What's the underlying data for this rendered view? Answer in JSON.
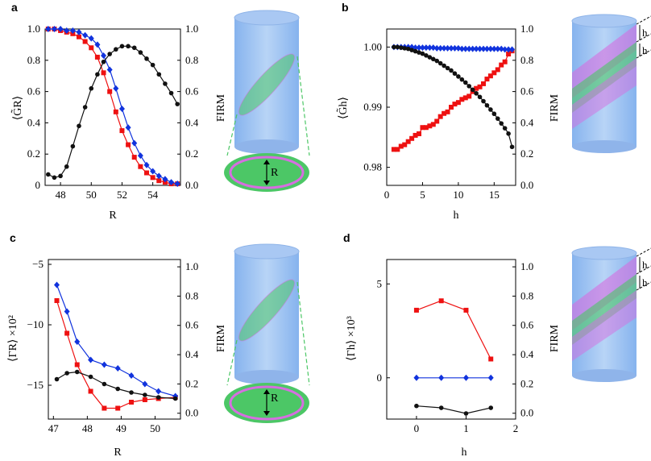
{
  "colors": {
    "red": "#ee1111",
    "blue": "#1133dd",
    "black": "#111111",
    "cyl": "#9ec3f0",
    "green": "#4cc766",
    "pink": "#d66ee0"
  },
  "panels": [
    {
      "label": "a",
      "xlabel": "R",
      "ylabel": "⟨G̃R⟩",
      "y2label": "FIRM",
      "ring_label": "R"
    },
    {
      "label": "b",
      "xlabel": "h",
      "ylabel": "⟨G̃h⟩",
      "y2label": "FIRM",
      "h_marks": [
        "h",
        "h"
      ]
    },
    {
      "label": "c",
      "xlabel": "R",
      "ylabel": "⟨ΓR⟩ ×10²",
      "y2label": "FIRM",
      "ring_label": "R"
    },
    {
      "label": "d",
      "xlabel": "h",
      "ylabel": "⟨Γh⟩ ×10³",
      "y2label": "FIRM",
      "h_marks": [
        "h",
        "h"
      ]
    }
  ],
  "chart_data": [
    {
      "type": "line",
      "panel": "a",
      "xlabel": "R",
      "ylabel": "⟨G̃R⟩",
      "y2label": "FIRM",
      "xlim": [
        47,
        55.8
      ],
      "ylim": [
        0,
        1.0
      ],
      "y2lim": [
        0,
        1.0
      ],
      "xticks": [
        48,
        50,
        52,
        54
      ],
      "yticks": [
        0,
        0.2,
        0.4,
        0.6,
        0.8,
        1.0
      ],
      "y2ticks": [
        0.0,
        0.2,
        0.4,
        0.6,
        0.8,
        1.0
      ],
      "xtick_labels": [
        "48",
        "50",
        "52",
        "54"
      ],
      "ytick_labels": [
        "0",
        "0.2",
        "0.4",
        "0.6",
        "0.8",
        "1.0"
      ],
      "y2tick_labels": [
        "0.0",
        "0.2",
        "0.4",
        "0.6",
        "0.8",
        "1.0"
      ],
      "series": [
        {
          "name": "red",
          "axis": "left",
          "marker": "square",
          "x": [
            47.2,
            47.6,
            48,
            48.4,
            48.8,
            49.2,
            49.6,
            50,
            50.4,
            50.8,
            51.2,
            51.6,
            52,
            52.4,
            52.8,
            53.2,
            53.6,
            54,
            54.4,
            54.8,
            55.2,
            55.6
          ],
          "y": [
            1.0,
            1.0,
            0.99,
            0.98,
            0.97,
            0.95,
            0.92,
            0.88,
            0.82,
            0.72,
            0.6,
            0.47,
            0.35,
            0.26,
            0.18,
            0.12,
            0.08,
            0.05,
            0.03,
            0.02,
            0.01,
            0.01
          ]
        },
        {
          "name": "blue",
          "axis": "left",
          "marker": "diamond",
          "x": [
            47.2,
            47.6,
            48,
            48.4,
            48.8,
            49.2,
            49.6,
            50,
            50.4,
            50.8,
            51.2,
            51.6,
            52,
            52.4,
            52.8,
            53.2,
            53.6,
            54,
            54.4,
            54.8,
            55.2,
            55.6
          ],
          "y": [
            1.0,
            1.0,
            1.0,
            0.99,
            0.99,
            0.98,
            0.96,
            0.94,
            0.9,
            0.83,
            0.74,
            0.62,
            0.49,
            0.37,
            0.27,
            0.19,
            0.13,
            0.09,
            0.06,
            0.04,
            0.02,
            0.01
          ]
        },
        {
          "name": "black",
          "axis": "right",
          "marker": "circle",
          "x": [
            47.2,
            47.6,
            48,
            48.4,
            48.8,
            49.2,
            49.6,
            50,
            50.4,
            50.8,
            51.2,
            51.6,
            52,
            52.4,
            52.8,
            53.2,
            53.6,
            54,
            54.4,
            54.8,
            55.2,
            55.6
          ],
          "y": [
            0.07,
            0.05,
            0.06,
            0.12,
            0.25,
            0.38,
            0.5,
            0.62,
            0.71,
            0.79,
            0.84,
            0.87,
            0.89,
            0.89,
            0.88,
            0.85,
            0.81,
            0.77,
            0.71,
            0.65,
            0.59,
            0.52
          ]
        }
      ]
    },
    {
      "type": "line",
      "panel": "b",
      "xlabel": "h",
      "ylabel": "⟨G̃h⟩",
      "y2label": "FIRM",
      "xlim": [
        0,
        18
      ],
      "ylim": [
        0.977,
        1.003
      ],
      "y2lim": [
        0,
        1.0
      ],
      "xticks": [
        0,
        5,
        10,
        15
      ],
      "yticks": [
        0.98,
        0.99,
        1.0
      ],
      "y2ticks": [
        0.0,
        0.2,
        0.4,
        0.6,
        0.8,
        1.0
      ],
      "xtick_labels": [
        "0",
        "5",
        "10",
        "15"
      ],
      "ytick_labels": [
        "0.98",
        "0.99",
        "1.00"
      ],
      "y2tick_labels": [
        "0.0",
        "0.2",
        "0.4",
        "0.6",
        "0.8",
        "1.0"
      ],
      "series": [
        {
          "name": "red",
          "axis": "right",
          "marker": "square",
          "x": [
            1,
            1.5,
            2,
            2.5,
            3,
            3.5,
            4,
            4.5,
            5,
            5.5,
            6,
            6.5,
            7,
            7.5,
            8,
            8.5,
            9,
            9.5,
            10,
            10.5,
            11,
            11.5,
            12,
            12.5,
            13,
            13.5,
            14,
            14.5,
            15,
            15.5,
            16,
            16.5,
            17,
            17.5
          ],
          "y": [
            0.23,
            0.23,
            0.25,
            0.26,
            0.28,
            0.3,
            0.32,
            0.33,
            0.37,
            0.37,
            0.38,
            0.39,
            0.41,
            0.44,
            0.46,
            0.47,
            0.5,
            0.52,
            0.53,
            0.55,
            0.56,
            0.57,
            0.6,
            0.62,
            0.63,
            0.65,
            0.68,
            0.7,
            0.72,
            0.74,
            0.77,
            0.79,
            0.84,
            0.86
          ]
        },
        {
          "name": "blue",
          "axis": "left",
          "marker": "diamond",
          "x": [
            1,
            1.5,
            2,
            2.5,
            3,
            3.5,
            4,
            4.5,
            5,
            5.5,
            6,
            6.5,
            7,
            7.5,
            8,
            8.5,
            9,
            9.5,
            10,
            10.5,
            11,
            11.5,
            12,
            12.5,
            13,
            13.5,
            14,
            14.5,
            15,
            15.5,
            16,
            16.5,
            17,
            17.5
          ],
          "y": [
            1.0,
            1.0,
            1.0,
            1.0,
            1.0,
            1.0,
            0.9999,
            0.9999,
            0.9999,
            0.9999,
            0.9999,
            0.9999,
            0.9998,
            0.9998,
            0.9998,
            0.9998,
            0.9998,
            0.9998,
            0.9998,
            0.9997,
            0.9997,
            0.9997,
            0.9997,
            0.9997,
            0.9997,
            0.9997,
            0.9997,
            0.9997,
            0.9997,
            0.9997,
            0.9997,
            0.9996,
            0.9996,
            0.9996
          ]
        },
        {
          "name": "black",
          "axis": "left",
          "marker": "circle",
          "x": [
            1,
            1.5,
            2,
            2.5,
            3,
            3.5,
            4,
            4.5,
            5,
            5.5,
            6,
            6.5,
            7,
            7.5,
            8,
            8.5,
            9,
            9.5,
            10,
            10.5,
            11,
            11.5,
            12,
            12.5,
            13,
            13.5,
            14,
            14.5,
            15,
            15.5,
            16,
            16.5,
            17,
            17.5
          ],
          "y": [
            1.0,
            1.0,
            0.9999,
            0.9998,
            0.9997,
            0.9995,
            0.9993,
            0.9991,
            0.9989,
            0.9986,
            0.9983,
            0.998,
            0.9977,
            0.9973,
            0.9969,
            0.9965,
            0.9961,
            0.9956,
            0.9951,
            0.9946,
            0.9941,
            0.9935,
            0.9929,
            0.9923,
            0.9917,
            0.991,
            0.9903,
            0.9896,
            0.9889,
            0.9881,
            0.9873,
            0.9865,
            0.9856,
            0.9834
          ]
        }
      ]
    },
    {
      "type": "line",
      "panel": "c",
      "xlabel": "R",
      "ylabel": "⟨ΓR⟩ ×10²",
      "y2label": "FIRM",
      "xlim": [
        46.85,
        50.75
      ],
      "ylim": [
        -17.8,
        -4.6
      ],
      "y2lim": [
        -0.04,
        1.05
      ],
      "xticks": [
        47,
        48,
        49,
        50
      ],
      "yticks": [
        -15,
        -10,
        -5
      ],
      "y2ticks": [
        0.0,
        0.2,
        0.4,
        0.6,
        0.8,
        1.0
      ],
      "xtick_labels": [
        "47",
        "48",
        "49",
        "50"
      ],
      "ytick_labels": [
        "−15",
        "−10",
        "−5"
      ],
      "y2tick_labels": [
        "0.0",
        "0.2",
        "0.4",
        "0.6",
        "0.8",
        "1.0"
      ],
      "series": [
        {
          "name": "red",
          "axis": "left",
          "marker": "square",
          "x": [
            47.1,
            47.4,
            47.7,
            48.1,
            48.5,
            48.9,
            49.3,
            49.7,
            50.1,
            50.6
          ],
          "y": [
            -8.0,
            -10.7,
            -13.3,
            -15.5,
            -16.9,
            -16.9,
            -16.4,
            -16.2,
            -16.1,
            -16.0
          ]
        },
        {
          "name": "blue",
          "axis": "left",
          "marker": "diamond",
          "x": [
            47.1,
            47.4,
            47.7,
            48.1,
            48.5,
            48.9,
            49.3,
            49.7,
            50.1,
            50.6
          ],
          "y": [
            -6.7,
            -8.9,
            -11.4,
            -12.9,
            -13.3,
            -13.6,
            -14.2,
            -14.9,
            -15.5,
            -15.9
          ]
        },
        {
          "name": "black",
          "axis": "left",
          "marker": "circle",
          "x": [
            47.1,
            47.4,
            47.7,
            48.1,
            48.5,
            48.9,
            49.3,
            49.7,
            50.1,
            50.6
          ],
          "y": [
            -14.5,
            -14.0,
            -13.9,
            -14.3,
            -14.9,
            -15.3,
            -15.6,
            -15.8,
            -16.0,
            -16.1
          ]
        }
      ]
    },
    {
      "type": "line",
      "panel": "d",
      "xlabel": "h",
      "ylabel": "⟨Γh⟩ ×10³",
      "y2label": "FIRM",
      "xlim": [
        -0.6,
        2.0
      ],
      "ylim": [
        -2.2,
        6.3
      ],
      "y2lim": [
        -0.04,
        1.05
      ],
      "xticks": [
        0,
        1,
        2
      ],
      "yticks": [
        0,
        5
      ],
      "y2ticks": [
        0.0,
        0.2,
        0.4,
        0.6,
        0.8,
        1.0
      ],
      "xtick_labels": [
        "0",
        "1",
        "2"
      ],
      "ytick_labels": [
        "0",
        "5"
      ],
      "y2tick_labels": [
        "0.0",
        "0.2",
        "0.4",
        "0.6",
        "0.8",
        "1.0"
      ],
      "series": [
        {
          "name": "red",
          "axis": "left",
          "marker": "square",
          "x": [
            0,
            0.5,
            1,
            1.5
          ],
          "y": [
            3.6,
            4.1,
            3.6,
            1.0
          ]
        },
        {
          "name": "blue",
          "axis": "left",
          "marker": "diamond",
          "x": [
            0,
            0.5,
            1,
            1.5
          ],
          "y": [
            0.0,
            0.0,
            0.0,
            0.0
          ]
        },
        {
          "name": "black",
          "axis": "left",
          "marker": "circle",
          "x": [
            0,
            0.5,
            1,
            1.5
          ],
          "y": [
            -1.5,
            -1.6,
            -1.9,
            -1.6
          ]
        }
      ]
    }
  ]
}
